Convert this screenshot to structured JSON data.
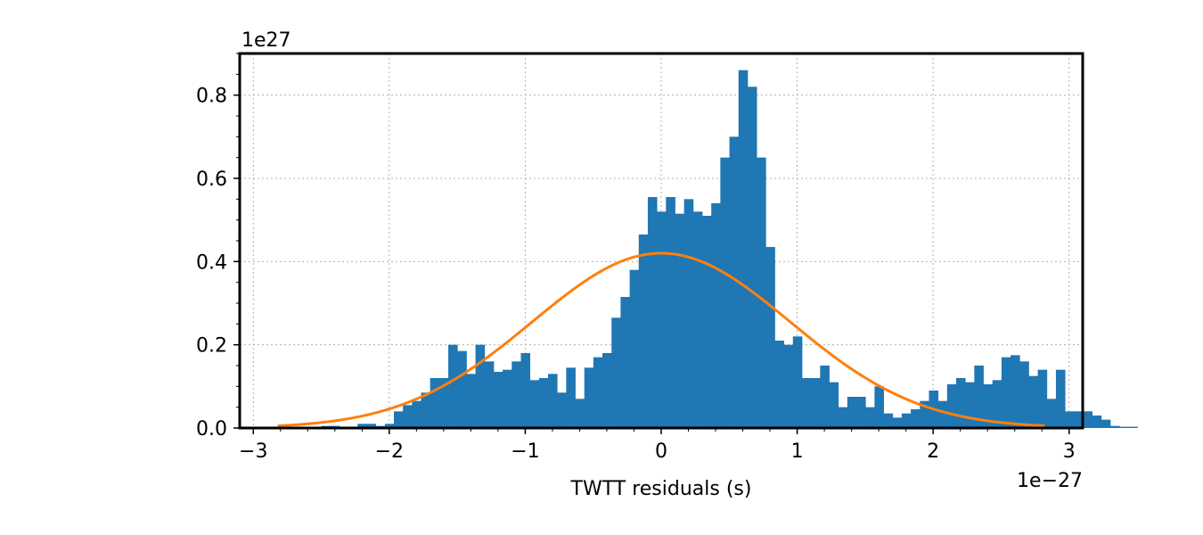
{
  "chart_data": {
    "type": "bar",
    "title": "",
    "xlabel": "TWTT residuals (s)",
    "ylabel": "",
    "x_offset_label": "1e−27",
    "y_offset_label": "1e27",
    "xlim": [
      -3.1,
      3.1
    ],
    "ylim": [
      0,
      0.9
    ],
    "grid": true,
    "x_ticks": [
      {
        "value": -3,
        "label": "−3"
      },
      {
        "value": -2,
        "label": "−2"
      },
      {
        "value": -1,
        "label": "−1"
      },
      {
        "value": 0,
        "label": "0"
      },
      {
        "value": 1,
        "label": "1"
      },
      {
        "value": 2,
        "label": "2"
      },
      {
        "value": 3,
        "label": "3"
      }
    ],
    "y_ticks": [
      {
        "value": 0.0,
        "label": "0.0"
      },
      {
        "value": 0.2,
        "label": "0.2"
      },
      {
        "value": 0.4,
        "label": "0.4"
      },
      {
        "value": 0.6,
        "label": "0.6"
      },
      {
        "value": 0.8,
        "label": "0.8"
      }
    ],
    "series": [
      {
        "type": "histogram",
        "color": "#1f77b4",
        "bin_start": -2.9,
        "bin_width": 0.0667,
        "values": [
          0.003,
          0.003,
          0.0,
          0.0,
          0.003,
          0.003,
          0.005,
          0.005,
          0.003,
          0.003,
          0.01,
          0.01,
          0.005,
          0.01,
          0.04,
          0.055,
          0.065,
          0.085,
          0.12,
          0.12,
          0.2,
          0.185,
          0.13,
          0.2,
          0.16,
          0.135,
          0.14,
          0.16,
          0.18,
          0.115,
          0.12,
          0.13,
          0.085,
          0.145,
          0.07,
          0.145,
          0.17,
          0.18,
          0.265,
          0.315,
          0.38,
          0.465,
          0.555,
          0.52,
          0.555,
          0.515,
          0.55,
          0.52,
          0.51,
          0.54,
          0.65,
          0.7,
          0.86,
          0.82,
          0.65,
          0.435,
          0.21,
          0.2,
          0.22,
          0.12,
          0.12,
          0.15,
          0.11,
          0.05,
          0.075,
          0.075,
          0.05,
          0.1,
          0.035,
          0.025,
          0.035,
          0.045,
          0.065,
          0.09,
          0.065,
          0.105,
          0.12,
          0.11,
          0.15,
          0.105,
          0.115,
          0.17,
          0.175,
          0.16,
          0.125,
          0.14,
          0.07,
          0.14,
          0.04,
          0.04,
          0.04,
          0.03,
          0.02,
          0.005,
          0.003,
          0.003
        ]
      },
      {
        "type": "line",
        "color": "#ff7f0e",
        "mu": 0.0,
        "sigma": 0.95,
        "amplitude": 0.42,
        "x_range": [
          -2.82,
          2.82
        ]
      }
    ]
  }
}
